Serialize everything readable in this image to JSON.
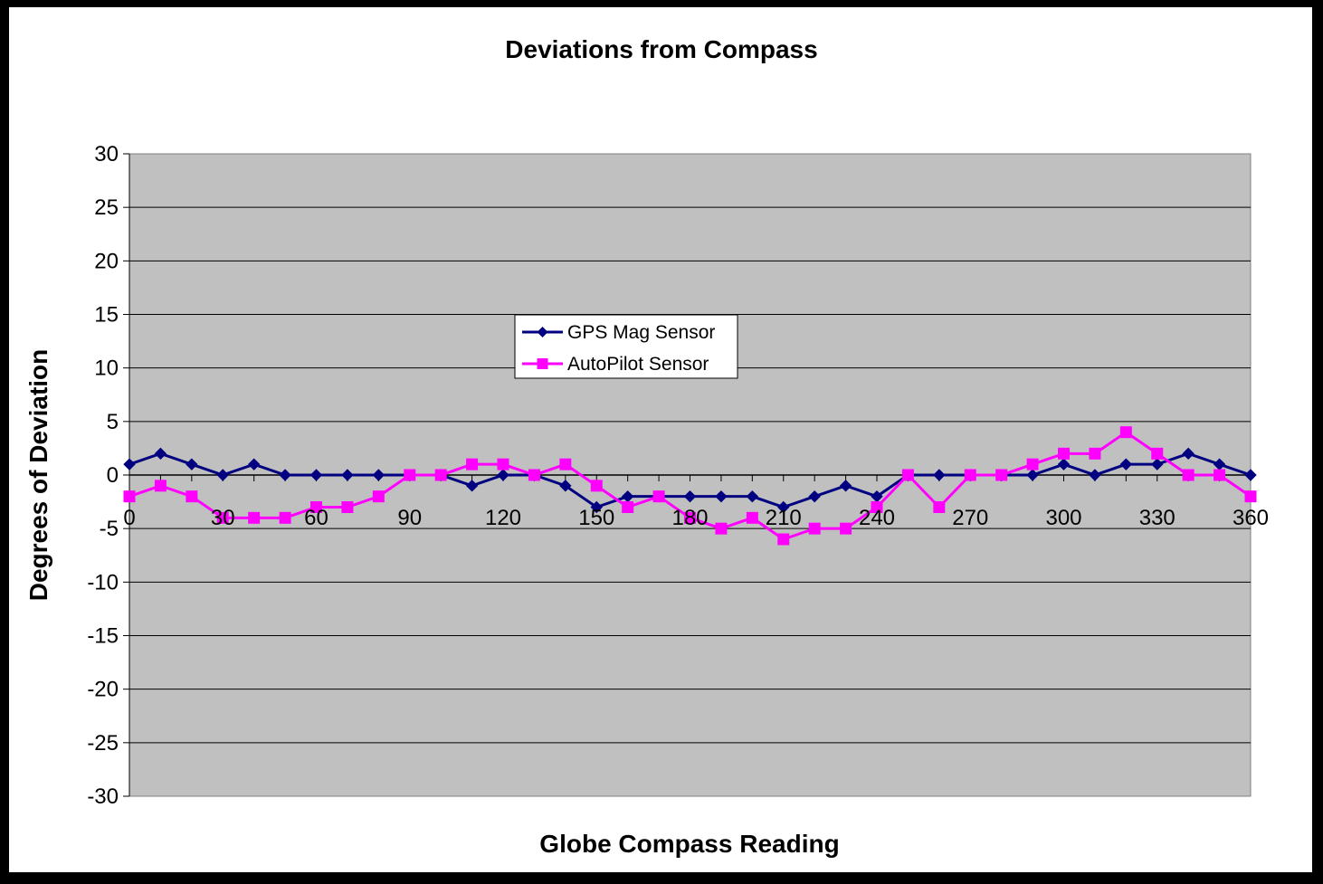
{
  "chart_data": {
    "type": "line",
    "title": "Deviations from Compass",
    "xlabel": "Globe Compass Reading",
    "ylabel": "Degrees of Deviation",
    "xlim": [
      0,
      360
    ],
    "ylim": [
      -30,
      30
    ],
    "x_ticks": [
      0,
      30,
      60,
      90,
      120,
      150,
      180,
      210,
      240,
      270,
      300,
      330,
      360
    ],
    "y_ticks": [
      30,
      25,
      20,
      15,
      10,
      5,
      0,
      -5,
      -10,
      -15,
      -20,
      -25,
      -30
    ],
    "grid": true,
    "legend_position": "center-left",
    "plot_background": "#c0c0c0",
    "x": [
      0,
      10,
      20,
      30,
      40,
      50,
      60,
      70,
      80,
      90,
      100,
      110,
      120,
      130,
      140,
      150,
      160,
      170,
      180,
      190,
      200,
      210,
      220,
      230,
      240,
      250,
      260,
      270,
      280,
      290,
      300,
      310,
      320,
      330,
      340,
      350,
      360
    ],
    "series": [
      {
        "name": "GPS Mag Sensor",
        "color": "#000080",
        "marker": "diamond",
        "values": [
          1,
          2,
          1,
          0,
          1,
          0,
          0,
          0,
          0,
          0,
          0,
          -1,
          0,
          0,
          -1,
          -3,
          -2,
          -2,
          -2,
          -2,
          -2,
          -3,
          -2,
          -1,
          -2,
          0,
          0,
          0,
          0,
          0,
          1,
          0,
          1,
          1,
          2,
          1,
          0
        ]
      },
      {
        "name": "AutoPilot Sensor",
        "color": "#ff00ff",
        "marker": "square",
        "values": [
          -2,
          -1,
          -2,
          -4,
          -4,
          -4,
          -3,
          -3,
          -2,
          0,
          0,
          1,
          1,
          0,
          1,
          -1,
          -3,
          -2,
          -4,
          -5,
          -4,
          -6,
          -5,
          -5,
          -3,
          0,
          -3,
          0,
          0,
          1,
          2,
          2,
          4,
          2,
          0,
          0,
          -2
        ]
      }
    ]
  }
}
